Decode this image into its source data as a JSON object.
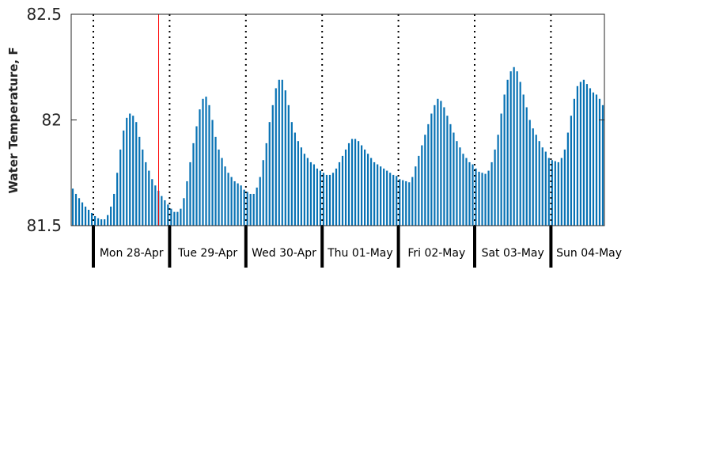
{
  "chart_data": {
    "type": "bar",
    "title": "",
    "xlabel": "",
    "ylabel": "Water Temperature, F",
    "ylim": [
      81.5,
      82.5
    ],
    "y_ticks": [
      "82.5",
      "82",
      "81.5"
    ],
    "y_tick_values": [
      82.5,
      82.0,
      81.5
    ],
    "days": [
      "Mon 28-Apr",
      "Tue 29-Apr",
      "Wed 30-Apr",
      "Thu 01-May",
      "Fri 02-May",
      "Sat 03-May",
      "Sun 04-May"
    ],
    "bar_color": "#0872b4",
    "marker_color": "#ff0000",
    "series": [
      {
        "values": [
          81.675,
          81.65,
          81.63,
          81.61,
          81.59,
          81.575,
          81.56,
          81.545,
          81.535,
          81.53,
          81.53,
          81.55,
          81.59,
          81.65,
          81.75,
          81.86,
          81.95,
          82.01,
          82.03,
          82.02,
          81.99,
          81.92,
          81.86,
          81.8,
          81.76,
          81.72,
          81.69,
          81.665,
          81.64,
          81.62,
          81.6,
          81.58,
          81.565,
          81.565,
          81.58,
          81.63,
          81.71,
          81.8,
          81.89,
          81.97,
          82.05,
          82.1,
          82.11,
          82.07,
          82.0,
          81.92,
          81.86,
          81.82,
          81.78,
          81.75,
          81.73,
          81.71,
          81.7,
          81.69,
          81.67,
          81.66,
          81.65,
          81.65,
          81.68,
          81.73,
          81.81,
          81.89,
          81.99,
          82.07,
          82.15,
          82.19,
          82.19,
          82.14,
          82.07,
          81.99,
          81.94,
          81.9,
          81.87,
          81.84,
          81.82,
          81.8,
          81.79,
          81.77,
          81.76,
          81.75,
          81.74,
          81.74,
          81.75,
          81.77,
          81.8,
          81.83,
          81.86,
          81.89,
          81.91,
          81.91,
          81.9,
          81.88,
          81.86,
          81.84,
          81.82,
          81.8,
          81.79,
          81.78,
          81.77,
          81.76,
          81.75,
          81.74,
          81.735,
          81.72,
          81.715,
          81.71,
          81.705,
          81.73,
          81.78,
          81.83,
          81.88,
          81.93,
          81.98,
          82.03,
          82.07,
          82.1,
          82.09,
          82.06,
          82.02,
          81.98,
          81.94,
          81.9,
          81.87,
          81.84,
          81.82,
          81.8,
          81.79,
          81.77,
          81.755,
          81.75,
          81.745,
          81.76,
          81.8,
          81.86,
          81.93,
          82.03,
          82.12,
          82.19,
          82.23,
          82.25,
          82.23,
          82.18,
          82.12,
          82.06,
          82.0,
          81.96,
          81.93,
          81.9,
          81.87,
          81.85,
          81.82,
          81.81,
          81.805,
          81.8,
          81.82,
          81.86,
          81.94,
          82.02,
          82.1,
          82.16,
          82.18,
          82.19,
          82.17,
          82.15,
          82.13,
          82.12,
          82.1,
          82.07
        ]
      }
    ],
    "grid": false,
    "legend": "none"
  }
}
